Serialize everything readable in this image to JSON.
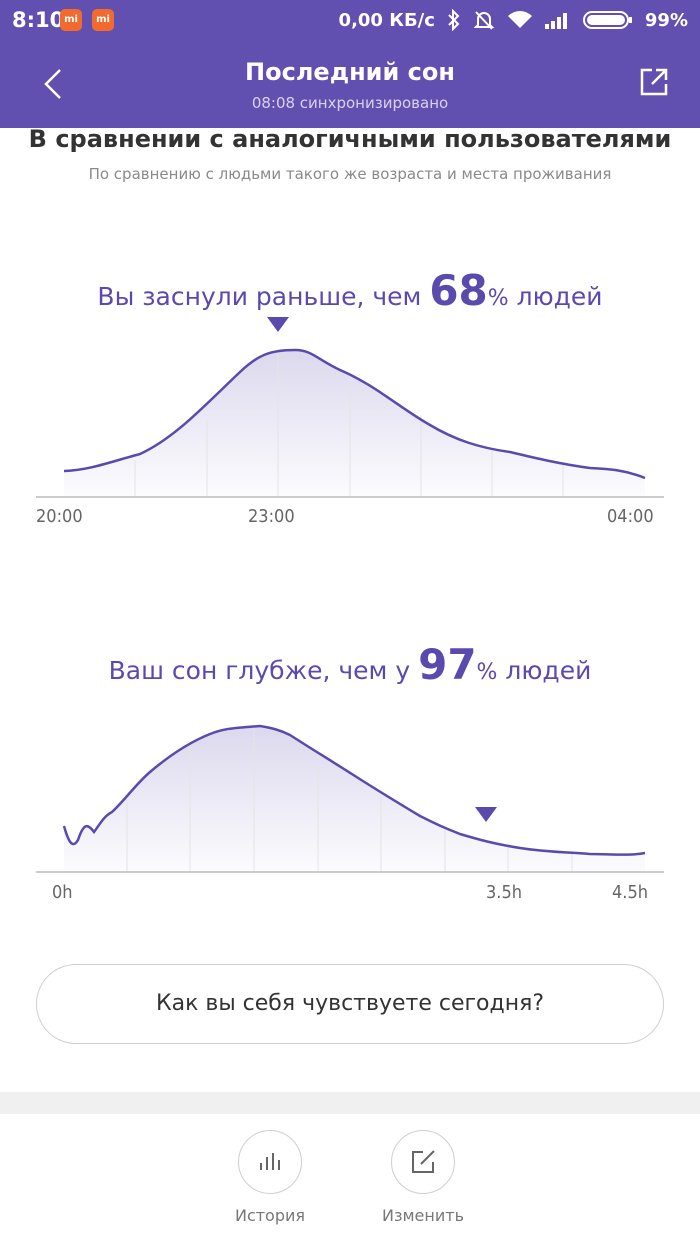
{
  "status_bar": {
    "time": "8:10",
    "notification_icons": [
      "mi-icon",
      "mi-icon"
    ],
    "network_speed": "0,00 КБ/с",
    "battery": "99%"
  },
  "app_bar": {
    "title": "Последний сон",
    "subtitle": "08:08 синхронизировано"
  },
  "comparison": {
    "heading": "В сравнении с аналогичными пользователями",
    "subheading": "По сравнению с людьми такого же возраста и места проживания"
  },
  "sleep_onset": {
    "prefix": "Вы заснули раньше, чем ",
    "value": "68",
    "suffix_pct": "%",
    "suffix": " людей",
    "ticks": [
      "20:00",
      "23:00",
      "04:00"
    ]
  },
  "sleep_depth": {
    "prefix": "Ваш сон глубже, чем у ",
    "value": "97",
    "suffix_pct": "%",
    "suffix": " людей",
    "ticks": [
      "0h",
      "3.5h",
      "4.5h"
    ]
  },
  "feel_button": "Как вы себя чувствуете сегодня?",
  "bottom_nav": {
    "history": "История",
    "edit": "Изменить"
  },
  "colors": {
    "brand": "#6150b0",
    "accent_line": "#5b4aae"
  }
}
